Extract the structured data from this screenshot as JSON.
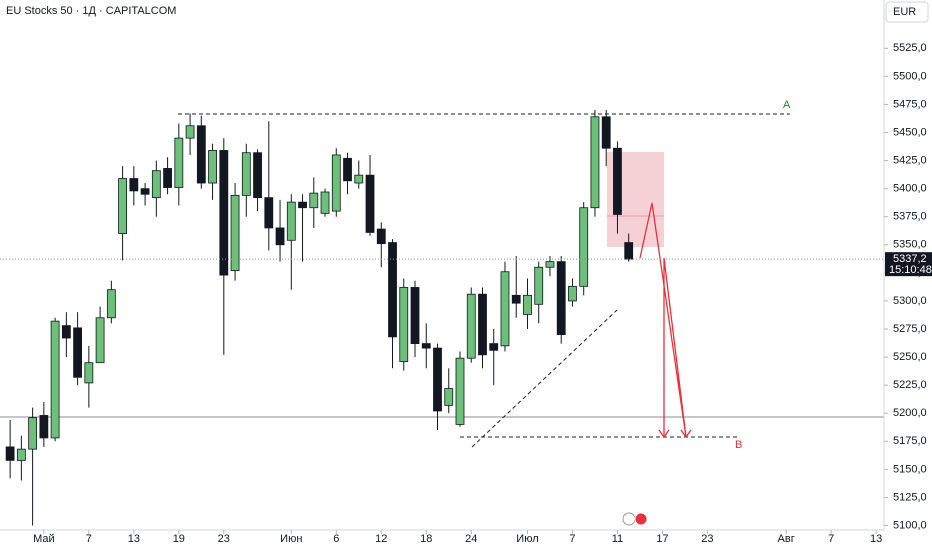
{
  "chart_data": {
    "type": "candlestick",
    "title": "EU Stocks 50 · 1Д · CAPITALCOM",
    "currency": "EUR",
    "up_color": "#6cc07a",
    "down_color": "#131722",
    "x": [
      0,
      1,
      2,
      3,
      4,
      5,
      6,
      7,
      8,
      9,
      10,
      11,
      12,
      13,
      14,
      15,
      16,
      17,
      18,
      19,
      20,
      21,
      22,
      23,
      24,
      25,
      26,
      27,
      28,
      29,
      30,
      31,
      32,
      33,
      34,
      35,
      36,
      37,
      38,
      39,
      40,
      41,
      42,
      43,
      44,
      45,
      46,
      47,
      48,
      49,
      50,
      51,
      52,
      53,
      54,
      55
    ],
    "open": [
      5170,
      5158,
      5168,
      5198,
      5178,
      5278,
      5276,
      5227,
      5245,
      5285,
      5360,
      5409,
      5400,
      5392,
      5418,
      5401,
      5445,
      5456,
      5405,
      5434,
      5327,
      5394,
      5432,
      5392,
      5365,
      5354,
      5388,
      5383,
      5378,
      5380,
      5427,
      5405,
      5412,
      5364,
      5352,
      5246,
      5312,
      5262,
      5258,
      5207,
      5190,
      5249,
      5306,
      5262,
      5260,
      5305,
      5288,
      5297,
      5330,
      5335,
      5300,
      5313,
      5383,
      5464,
      5436,
      5352
    ],
    "high": [
      5194,
      5180,
      5205,
      5210,
      5285,
      5290,
      5290,
      5260,
      5295,
      5318,
      5420,
      5420,
      5405,
      5425,
      5428,
      5458,
      5467,
      5465,
      5440,
      5445,
      5405,
      5440,
      5435,
      5460,
      5390,
      5395,
      5395,
      5410,
      5400,
      5436,
      5432,
      5425,
      5430,
      5370,
      5355,
      5320,
      5318,
      5280,
      5262,
      5240,
      5255,
      5312,
      5312,
      5275,
      5335,
      5340,
      5320,
      5335,
      5340,
      5340,
      5320,
      5388,
      5470,
      5470,
      5442,
      5360
    ],
    "low": [
      5142,
      5140,
      5100,
      5170,
      5175,
      5250,
      5225,
      5205,
      5245,
      5280,
      5336,
      5385,
      5385,
      5375,
      5395,
      5385,
      5430,
      5400,
      5390,
      5252,
      5318,
      5375,
      5380,
      5345,
      5335,
      5310,
      5335,
      5365,
      5375,
      5375,
      5395,
      5400,
      5358,
      5330,
      5240,
      5238,
      5250,
      5240,
      5185,
      5200,
      5188,
      5245,
      5240,
      5225,
      5255,
      5285,
      5275,
      5280,
      5322,
      5262,
      5295,
      5305,
      5375,
      5420,
      5360,
      5335
    ],
    "close": [
      5158,
      5168,
      5196,
      5178,
      5282,
      5267,
      5232,
      5245,
      5285,
      5310,
      5409,
      5398,
      5395,
      5416,
      5401,
      5445,
      5456,
      5405,
      5434,
      5323,
      5394,
      5432,
      5392,
      5365,
      5350,
      5388,
      5383,
      5396,
      5397,
      5430,
      5407,
      5412,
      5361,
      5351,
      5268,
      5312,
      5262,
      5258,
      5202,
      5222,
      5249,
      5306,
      5252,
      5256,
      5326,
      5298,
      5305,
      5330,
      5335,
      5270,
      5313,
      5383,
      5464,
      5436,
      5377,
      5337.2
    ],
    "xlim": [
      -0.9,
      77.7
    ],
    "ylim": [
      5096,
      5568
    ],
    "xticks": [
      {
        "value": 3,
        "label": "Май"
      },
      {
        "value": 7,
        "label": "7"
      },
      {
        "value": 11,
        "label": "13"
      },
      {
        "value": 15,
        "label": "19"
      },
      {
        "value": 19,
        "label": "23"
      },
      {
        "value": 25,
        "label": "Июн"
      },
      {
        "value": 29,
        "label": "6"
      },
      {
        "value": 33,
        "label": "12"
      },
      {
        "value": 37,
        "label": "18"
      },
      {
        "value": 41,
        "label": "24"
      },
      {
        "value": 46,
        "label": "Июл"
      },
      {
        "value": 50,
        "label": "7"
      },
      {
        "value": 54,
        "label": "11"
      },
      {
        "value": 58,
        "label": "17"
      },
      {
        "value": 62,
        "label": "23"
      },
      {
        "value": 69,
        "label": "Авг"
      },
      {
        "value": 73,
        "label": "7"
      },
      {
        "value": 77,
        "label": "13"
      }
    ],
    "yticks": [
      {
        "value": 5100,
        "label": "5100,0"
      },
      {
        "value": 5125,
        "label": "5125,0"
      },
      {
        "value": 5150,
        "label": "5150,0"
      },
      {
        "value": 5175,
        "label": "5175,0"
      },
      {
        "value": 5200,
        "label": "5200,0"
      },
      {
        "value": 5225,
        "label": "5225,0"
      },
      {
        "value": 5250,
        "label": "5250,0"
      },
      {
        "value": 5275,
        "label": "5275,0"
      },
      {
        "value": 5300,
        "label": "5300,0"
      },
      {
        "value": 5325,
        "label": "5325,0"
      },
      {
        "value": 5350,
        "label": "5350,0"
      },
      {
        "value": 5375,
        "label": "5375,0"
      },
      {
        "value": 5400,
        "label": "5400,0"
      },
      {
        "value": 5425,
        "label": "5425,0"
      },
      {
        "value": 5450,
        "label": "5450,0"
      },
      {
        "value": 5475,
        "label": "5475,0"
      },
      {
        "value": 5500,
        "label": "5500,0"
      },
      {
        "value": 5525,
        "label": "5525,0"
      }
    ],
    "last_price": {
      "value": 5337.2,
      "label": "5337,2"
    },
    "countdown": "15:10:48",
    "annotations": [
      "A",
      "B"
    ]
  }
}
